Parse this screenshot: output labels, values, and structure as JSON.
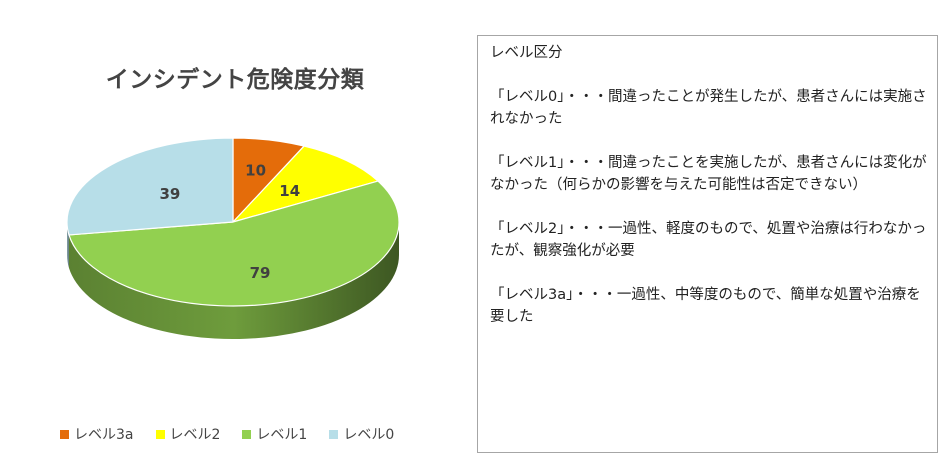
{
  "chart_data": {
    "type": "pie",
    "title": "インシデント危険度分類",
    "categories": [
      "レベル3a",
      "レベル2",
      "レベル1",
      "レベル0"
    ],
    "values": [
      10,
      14,
      79,
      39
    ],
    "colors": [
      "#E46C0A",
      "#FFFF00",
      "#92D050",
      "#B7DEE8"
    ],
    "legend_position": "bottom",
    "style": "3d"
  },
  "description": {
    "heading": "レベル区分",
    "entries": [
      "「レベル0」・・・間違ったことが発生したが、患者さんには実施されなかった",
      "「レベル1」・・・間違ったことを実施したが、患者さんには変化がなかった（何らかの影響を与えた可能性は否定できない）",
      "「レベル2」・・・一過性、軽度のもので、処置や治療は行わなかったが、観察強化が必要",
      "「レベル3a」・・・一過性、中等度のもので、簡単な処置や治療を要した"
    ]
  }
}
